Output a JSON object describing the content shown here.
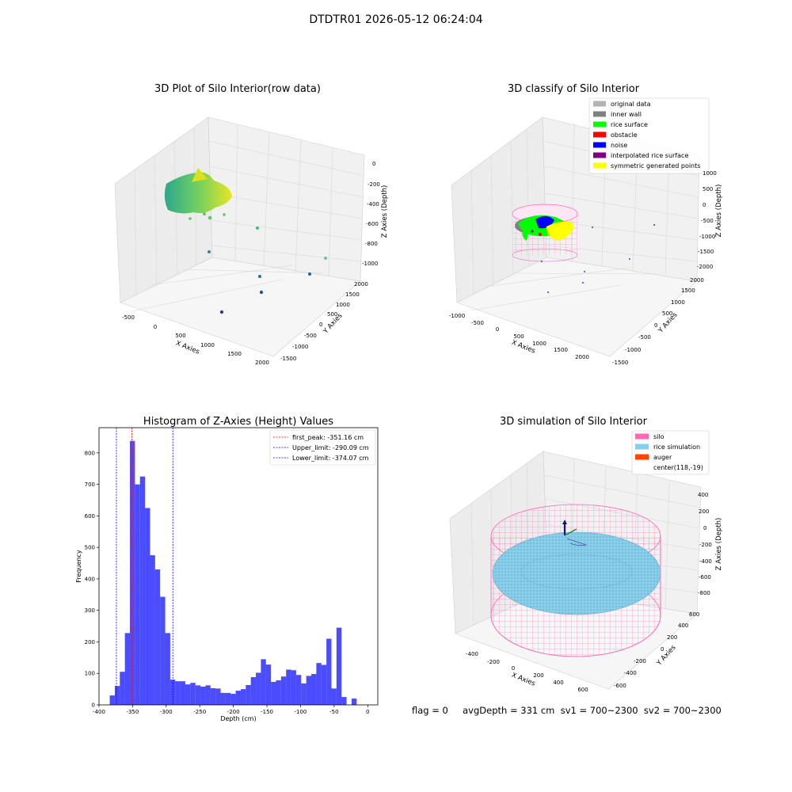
{
  "figure": {
    "title": "DTDTR01 2026-05-12 06:24:04",
    "status": "flag = 0     avgDepth = 331 cm  sv1 = 700~2300  sv2 = 700~2300"
  },
  "chart_data": [
    {
      "type": "scatter",
      "title": "3D Plot of Silo Interior(row data)",
      "xlabel": "X Axies",
      "ylabel": "Y Axies",
      "zlabel": "Z Axies (Depth)",
      "x_ticks": [
        "-500",
        "0",
        "500",
        "1000",
        "1500",
        "2000"
      ],
      "y_ticks": [
        "-1500",
        "-1000",
        "-500",
        "0",
        "500",
        "1000",
        "1500",
        "2000"
      ],
      "z_ticks": [
        "0",
        "-200",
        "-400",
        "-600",
        "-800",
        "-1000"
      ],
      "colormap": "viridis",
      "grid": true
    },
    {
      "type": "scatter",
      "title": "3D classify of Silo Interior",
      "xlabel": "X Axies",
      "ylabel": "Y Axies",
      "zlabel": "Z Axies (Depth)",
      "x_ticks": [
        "-1000",
        "-500",
        "0",
        "500",
        "1000",
        "1500",
        "2000"
      ],
      "y_ticks": [
        "-1500",
        "-1000",
        "-500",
        "0",
        "500",
        "1000",
        "1500",
        "2000"
      ],
      "z_ticks": [
        "1000",
        "500",
        "0",
        "-500",
        "-1000",
        "-1500",
        "-2000"
      ],
      "legend_position": "top-right",
      "legend": [
        {
          "label": "original data",
          "color": "#b3b3b3"
        },
        {
          "label": "inner wall",
          "color": "#808080"
        },
        {
          "label": "rice surface",
          "color": "#00ff00"
        },
        {
          "label": "obstacle",
          "color": "#ff0000"
        },
        {
          "label": "noise",
          "color": "#0000ff"
        },
        {
          "label": "interpolated rice surface",
          "color": "#800080"
        },
        {
          "label": "symmetric generated points",
          "color": "#ffff00"
        }
      ],
      "grid": true
    },
    {
      "type": "bar",
      "title": "Histogram of Z-Axies (Height) Values",
      "xlabel": "Depth (cm)",
      "ylabel": "Frequency",
      "xlim": [
        -400,
        15
      ],
      "ylim": [
        0,
        880
      ],
      "x_ticks": [
        -400,
        -350,
        -300,
        -250,
        -200,
        -150,
        -100,
        -50,
        0
      ],
      "y_ticks": [
        0,
        100,
        200,
        300,
        400,
        500,
        600,
        700,
        800
      ],
      "bin_width": 7.5,
      "bin_start": -384,
      "values": [
        30,
        60,
        105,
        228,
        838,
        700,
        725,
        625,
        475,
        430,
        343,
        228,
        80,
        75,
        75,
        65,
        70,
        62,
        58,
        62,
        53,
        52,
        38,
        38,
        35,
        45,
        50,
        63,
        88,
        102,
        145,
        128,
        73,
        78,
        90,
        112,
        110,
        95,
        68,
        92,
        98,
        133,
        127,
        210,
        52,
        245,
        25,
        0,
        20
      ],
      "bar_color": "#0000ff",
      "vlines": [
        {
          "label": "first_peak: -351.16 cm",
          "x": -351.16,
          "color": "#ff0000"
        },
        {
          "label": "Upper_limit: -290.09 cm",
          "x": -290.09,
          "color": "#0000ff"
        },
        {
          "label": "Lower_limit: -374.07 cm",
          "x": -374.07,
          "color": "#0000ff"
        }
      ],
      "legend_position": "top-right",
      "grid": false
    },
    {
      "type": "scatter",
      "title": "3D simulation of Silo Interior",
      "xlabel": "X Axies",
      "ylabel": "Y Axies",
      "zlabel": "Z Axies (Depth)",
      "x_ticks": [
        "-400",
        "-200",
        "0",
        "200",
        "400",
        "600"
      ],
      "y_ticks": [
        "-600",
        "-400",
        "-200",
        "0",
        "200",
        "400",
        "600"
      ],
      "z_ticks": [
        "400",
        "200",
        "0",
        "-200",
        "-400",
        "-600",
        "-800"
      ],
      "legend_position": "top-right",
      "legend": [
        {
          "label": "silo",
          "color": "#ff69b4"
        },
        {
          "label": "rice simulation",
          "color": "#87ceeb"
        },
        {
          "label": "auger",
          "color": "#ff4500"
        },
        {
          "label": "center(118,-19)",
          "color": ""
        }
      ],
      "grid": true
    }
  ]
}
